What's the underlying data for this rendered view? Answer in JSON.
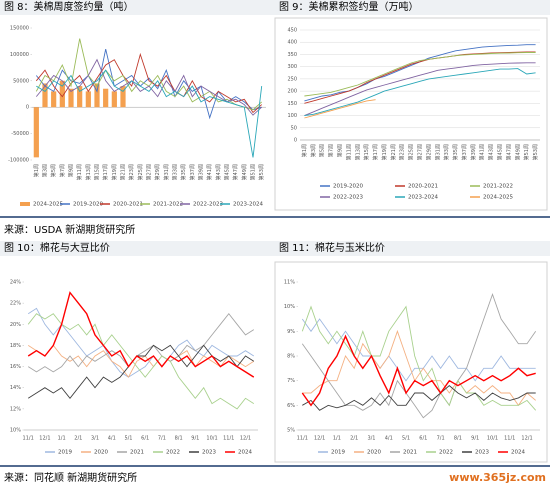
{
  "sources": [
    "来源：USDA 新湖期货研究所",
    "来源：同花顺 新湖期货研究所"
  ],
  "watermark": "www.365jz.com",
  "chart_data": [
    {
      "type": "line",
      "title": "图 8：美棉周度签约量（吨）",
      "grid": false,
      "legend": "bottom",
      "categories": [
        "第1周",
        "第3周",
        "第5周",
        "第7周",
        "第9周",
        "第11周",
        "第13周",
        "第15周",
        "第17周",
        "第19周",
        "第21周",
        "第23周",
        "第25周",
        "第27周",
        "第29周",
        "第31周",
        "第33周",
        "第35周",
        "第37周",
        "第39周",
        "第41周",
        "第43周",
        "第45周",
        "第47周",
        "第49周",
        "第51周",
        "第53周"
      ],
      "ylim": [
        -100000,
        150000
      ],
      "yticks": [
        -100000,
        -50000,
        0,
        50000,
        100000,
        150000
      ],
      "series": [
        {
          "name": "2024-2025",
          "type": "bar",
          "color": "#f4a04f",
          "values": [
            -95000,
            45000,
            30000,
            50000,
            35000,
            40000,
            30000,
            45000,
            35000,
            30000,
            40000,
            null,
            null,
            null,
            null,
            null,
            null,
            null,
            null,
            null,
            null,
            null,
            null,
            null,
            null,
            null,
            null
          ]
        },
        {
          "name": "2019-2020",
          "color": "#4472c4",
          "values": [
            60000,
            40000,
            30000,
            70000,
            50000,
            45000,
            60000,
            30000,
            110000,
            40000,
            50000,
            60000,
            40000,
            55000,
            35000,
            70000,
            20000,
            50000,
            30000,
            40000,
            -20000,
            30000,
            10000,
            20000,
            10000,
            -5000,
            0
          ]
        },
        {
          "name": "2020-2021",
          "color": "#c0392b",
          "values": [
            50000,
            70000,
            40000,
            20000,
            45000,
            60000,
            30000,
            55000,
            80000,
            90000,
            60000,
            40000,
            100000,
            50000,
            40000,
            60000,
            30000,
            20000,
            50000,
            20000,
            10000,
            30000,
            20000,
            10000,
            15000,
            -10000,
            5000
          ]
        },
        {
          "name": "2021-2022",
          "color": "#9bbb59",
          "values": [
            30000,
            60000,
            50000,
            80000,
            40000,
            130000,
            60000,
            40000,
            70000,
            50000,
            60000,
            30000,
            50000,
            40000,
            60000,
            30000,
            20000,
            40000,
            10000,
            20000,
            30000,
            10000,
            15000,
            5000,
            0,
            -5000,
            10000
          ]
        },
        {
          "name": "2022-2023",
          "color": "#8064a2",
          "values": [
            20000,
            40000,
            60000,
            50000,
            30000,
            40000,
            60000,
            90000,
            50000,
            30000,
            40000,
            50000,
            30000,
            40000,
            20000,
            50000,
            30000,
            60000,
            20000,
            40000,
            30000,
            20000,
            10000,
            15000,
            5000,
            -15000,
            0
          ]
        },
        {
          "name": "2023-2024",
          "color": "#2aa7b8",
          "values": [
            40000,
            30000,
            50000,
            40000,
            60000,
            30000,
            40000,
            50000,
            70000,
            40000,
            30000,
            50000,
            40000,
            30000,
            50000,
            20000,
            30000,
            20000,
            40000,
            10000,
            20000,
            15000,
            10000,
            5000,
            0,
            -95000,
            40000
          ]
        }
      ]
    },
    {
      "type": "line",
      "title": "图 9：美棉累积签约量（万吨）",
      "grid": true,
      "legend": "bottom",
      "categories": [
        "第1周",
        "第3周",
        "第5周",
        "第7周",
        "第9周",
        "第11周",
        "第13周",
        "第15周",
        "第17周",
        "第19周",
        "第21周",
        "第23周",
        "第25周",
        "第27周",
        "第29周",
        "第31周",
        "第33周",
        "第35周",
        "第37周",
        "第39周",
        "第41周",
        "第43周",
        "第45周",
        "第47周",
        "第49周",
        "第51周",
        "第53周"
      ],
      "ylim": [
        0,
        450
      ],
      "yticks": [
        0,
        50,
        100,
        150,
        200,
        250,
        300,
        350,
        400,
        450
      ],
      "series": [
        {
          "name": "2019-2020",
          "color": "#4472c4",
          "values": [
            160,
            170,
            180,
            185,
            195,
            200,
            215,
            230,
            250,
            260,
            275,
            290,
            305,
            320,
            335,
            345,
            355,
            365,
            370,
            375,
            380,
            383,
            385,
            387,
            388,
            390,
            390
          ]
        },
        {
          "name": "2020-2021",
          "color": "#c0392b",
          "values": [
            150,
            160,
            170,
            180,
            190,
            200,
            215,
            235,
            250,
            265,
            280,
            295,
            310,
            320,
            330,
            335,
            340,
            345,
            350,
            352,
            354,
            356,
            357,
            358,
            359,
            360,
            360
          ]
        },
        {
          "name": "2021-2022",
          "color": "#9bbb59",
          "values": [
            180,
            185,
            190,
            195,
            205,
            215,
            225,
            240,
            255,
            270,
            285,
            300,
            315,
            325,
            330,
            335,
            340,
            345,
            348,
            350,
            352,
            354,
            355,
            356,
            357,
            358,
            358
          ]
        },
        {
          "name": "2022-2023",
          "color": "#8064a2",
          "values": [
            100,
            115,
            130,
            145,
            160,
            175,
            190,
            205,
            215,
            225,
            235,
            245,
            255,
            265,
            275,
            285,
            290,
            295,
            300,
            305,
            308,
            310,
            312,
            314,
            315,
            316,
            316
          ]
        },
        {
          "name": "2023-2024",
          "color": "#2aa7b8",
          "values": [
            100,
            105,
            115,
            125,
            135,
            145,
            155,
            170,
            185,
            200,
            210,
            220,
            230,
            240,
            250,
            255,
            260,
            265,
            270,
            275,
            280,
            285,
            290,
            290,
            292,
            270,
            275
          ]
        },
        {
          "name": "2024-2025",
          "color": "#f4a04f",
          "values": [
            90,
            100,
            110,
            120,
            130,
            140,
            150,
            160,
            165,
            null,
            null,
            null,
            null,
            null,
            null,
            null,
            null,
            null,
            null,
            null,
            null,
            null,
            null,
            null,
            null,
            null,
            null
          ]
        }
      ]
    },
    {
      "type": "line",
      "title": "图 10：棉花与大豆比价",
      "grid": false,
      "legend": "bottom",
      "categories": [
        "11/1",
        null,
        "12/1",
        null,
        "1/1",
        null,
        "2/1",
        null,
        "3/1",
        null,
        "4/1",
        null,
        "5/1",
        null,
        "6/1",
        null,
        "7/1",
        null,
        "8/1",
        null,
        "9/1",
        null,
        "10/1",
        null,
        "11/1",
        null,
        "12/1",
        null
      ],
      "ylim": [
        10,
        24
      ],
      "yticks": [
        {
          "value": 10,
          "label": "10%"
        },
        {
          "value": 12,
          "label": "12%"
        },
        {
          "value": 14,
          "label": "14%"
        },
        {
          "value": 16,
          "label": "16%"
        },
        {
          "value": 18,
          "label": "18%"
        },
        {
          "value": 20,
          "label": "20%"
        },
        {
          "value": 22,
          "label": "22%"
        },
        {
          "value": 24,
          "label": "24%"
        }
      ],
      "series": [
        {
          "name": "2019",
          "color": "#9fb8e0",
          "values": [
            21,
            21.5,
            20,
            19,
            20,
            19,
            18,
            17,
            17.5,
            18,
            16.5,
            15.5,
            15,
            15.5,
            16,
            17,
            16,
            17,
            18,
            18.5,
            17.5,
            17,
            18,
            17.5,
            17,
            17,
            17.5,
            17
          ]
        },
        {
          "name": "2020",
          "color": "#f4b183",
          "values": [
            18,
            17.5,
            17,
            18,
            17,
            16.5,
            17,
            16,
            17,
            17.5,
            16.5,
            16,
            15,
            16.5,
            17,
            16,
            17,
            16.5,
            17,
            17.5,
            16,
            17,
            16.5,
            16,
            17,
            16.5,
            16,
            16.5
          ]
        },
        {
          "name": "2021",
          "color": "#a6a6a6",
          "values": [
            16,
            15.5,
            16,
            15.5,
            16,
            17,
            16,
            17,
            16.5,
            17,
            17.5,
            17,
            16,
            17,
            17.5,
            18,
            17,
            16.5,
            17,
            18,
            17.5,
            18,
            19,
            20,
            21,
            20,
            19,
            19.5
          ]
        },
        {
          "name": "2022",
          "color": "#a9d18e",
          "values": [
            20,
            21,
            20.5,
            21,
            20,
            19.5,
            20,
            19,
            20,
            18,
            19,
            18,
            17,
            16,
            15,
            16,
            17,
            16.5,
            15,
            14,
            13,
            14,
            12.5,
            13,
            12.5,
            12,
            13,
            12.5
          ]
        },
        {
          "name": "2023",
          "color": "#404040",
          "values": [
            13,
            13.5,
            14,
            13.5,
            14,
            13,
            14,
            15,
            14,
            15,
            14.5,
            15,
            16,
            17,
            17,
            18,
            17.5,
            18,
            17,
            16,
            17,
            18,
            17,
            16.5,
            17,
            16,
            17,
            16.5
          ]
        },
        {
          "name": "2024",
          "color": "#ff0000",
          "values": [
            17,
            17.5,
            17,
            18,
            20,
            23,
            22,
            21,
            19,
            18,
            17,
            17.5,
            16,
            17,
            16.5,
            17,
            16,
            17,
            16.5,
            17,
            16,
            16.5,
            17,
            16,
            16.5,
            16,
            15.5,
            15
          ]
        }
      ]
    },
    {
      "type": "line",
      "title": "图 11：棉花与玉米比价",
      "grid": false,
      "legend": "bottom",
      "categories": [
        "11/1",
        null,
        "12/1",
        null,
        "1/1",
        null,
        "2/1",
        null,
        "3/1",
        null,
        "4/1",
        null,
        "5/1",
        null,
        "6/1",
        null,
        "7/1",
        null,
        "8/1",
        null,
        "9/1",
        null,
        "10/1",
        null,
        "11/1",
        null,
        "12/1",
        null
      ],
      "ylim": [
        5,
        11
      ],
      "yticks": [
        {
          "value": 5,
          "label": "5%"
        },
        {
          "value": 6,
          "label": "6%"
        },
        {
          "value": 7,
          "label": "7%"
        },
        {
          "value": 8,
          "label": "8%"
        },
        {
          "value": 9,
          "label": "9%"
        },
        {
          "value": 10,
          "label": "10%"
        },
        {
          "value": 11,
          "label": "11%"
        }
      ],
      "series": [
        {
          "name": "2019",
          "color": "#9fb8e0",
          "values": [
            9.5,
            9,
            9.5,
            9,
            8.5,
            9,
            8.5,
            8,
            8,
            7.5,
            8,
            7.5,
            7,
            7.5,
            7.5,
            8,
            7.5,
            8,
            7.5,
            7.5,
            7,
            7.5,
            7.5,
            8,
            7.5,
            7.5,
            7.5,
            7.5
          ]
        },
        {
          "name": "2020",
          "color": "#f4b183",
          "values": [
            6.5,
            6.5,
            6.8,
            7,
            7,
            8,
            7.5,
            8.5,
            8,
            7.5,
            8,
            9,
            8,
            7,
            7.5,
            7,
            7,
            6.5,
            7,
            6.5,
            6.8,
            6.5,
            6.8,
            6.5,
            6.5,
            6,
            6.5,
            6.2
          ]
        },
        {
          "name": "2021",
          "color": "#a6a6a6",
          "values": [
            8.5,
            8,
            7.5,
            7,
            6.5,
            6,
            6,
            5.8,
            6,
            6.5,
            6,
            7,
            6.5,
            6,
            5.5,
            5.8,
            6.5,
            6,
            7,
            7.5,
            8.5,
            9.5,
            10.5,
            9.5,
            9,
            8.5,
            8.5,
            9
          ]
        },
        {
          "name": "2022",
          "color": "#a9d18e",
          "values": [
            9,
            10,
            9,
            8.5,
            9,
            8.5,
            8,
            9,
            8,
            8,
            9,
            9.5,
            10,
            8,
            7,
            7.5,
            6.5,
            6,
            7,
            6.5,
            6.5,
            6,
            6.2,
            6,
            6,
            6,
            6.2,
            5.8
          ]
        },
        {
          "name": "2023",
          "color": "#404040",
          "values": [
            6,
            6.2,
            5.8,
            6,
            5.9,
            6,
            6.2,
            6,
            6.3,
            6,
            6.4,
            6,
            6,
            6.5,
            6.5,
            6.2,
            6.5,
            6.8,
            6.5,
            6.3,
            6.5,
            6.2,
            6.5,
            6.3,
            6.2,
            6.3,
            6.5,
            6.5
          ]
        },
        {
          "name": "2024",
          "color": "#ff0000",
          "values": [
            6.5,
            6,
            6.5,
            7.5,
            8,
            8.8,
            8,
            7.5,
            8,
            7.2,
            6.5,
            7.5,
            6.5,
            7,
            6.8,
            7,
            6.5,
            7,
            6.8,
            7,
            7.2,
            7,
            7.2,
            7,
            7.2,
            7.5,
            7.2,
            7.3
          ]
        }
      ]
    }
  ]
}
